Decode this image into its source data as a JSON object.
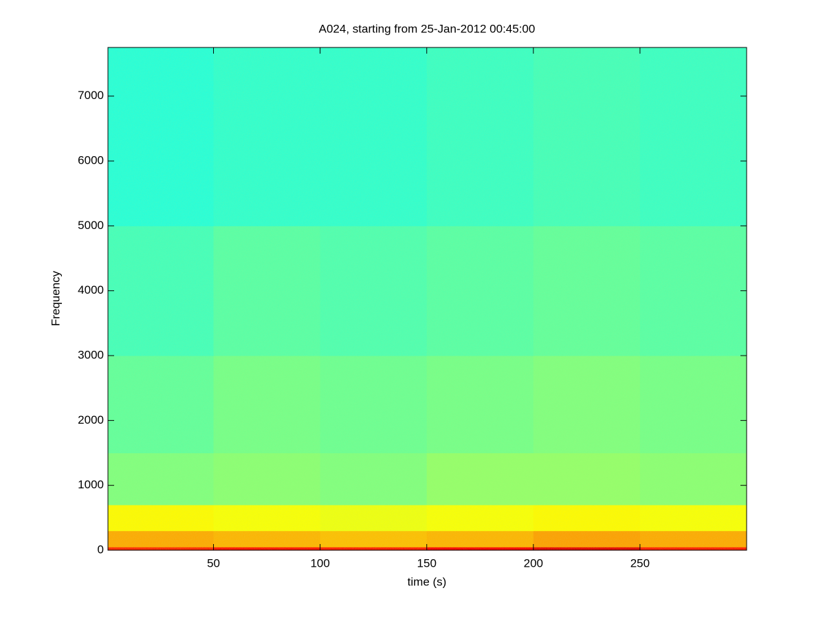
{
  "chart_data": {
    "type": "heatmap",
    "title": "A024, starting from 25-Jan-2012 00:45:00",
    "xlabel": "time (s)",
    "ylabel": "Frequency",
    "xbins": [
      0.5,
      50,
      100,
      150,
      200,
      250,
      300
    ],
    "ybins": [
      0,
      50,
      300,
      700,
      1500,
      3000,
      5000,
      7750
    ],
    "values": [
      [
        0.84,
        0.86,
        0.85,
        0.88,
        0.9,
        0.85
      ],
      [
        0.71,
        0.7,
        0.69,
        0.7,
        0.72,
        0.71
      ],
      [
        0.63,
        0.62,
        0.61,
        0.62,
        0.63,
        0.62
      ],
      [
        0.5,
        0.51,
        0.5,
        0.52,
        0.52,
        0.51
      ],
      [
        0.47,
        0.49,
        0.48,
        0.49,
        0.5,
        0.49
      ],
      [
        0.44,
        0.46,
        0.45,
        0.46,
        0.47,
        0.46
      ],
      [
        0.41,
        0.42,
        0.42,
        0.43,
        0.44,
        0.43
      ]
    ],
    "colormap": "jet",
    "clim": [
      0,
      1
    ],
    "xlim": [
      0.5,
      300
    ],
    "ylim": [
      0,
      7750
    ],
    "xticks": [
      50,
      100,
      150,
      200,
      250
    ],
    "yticks": [
      0,
      1000,
      2000,
      3000,
      4000,
      5000,
      6000,
      7000
    ]
  }
}
